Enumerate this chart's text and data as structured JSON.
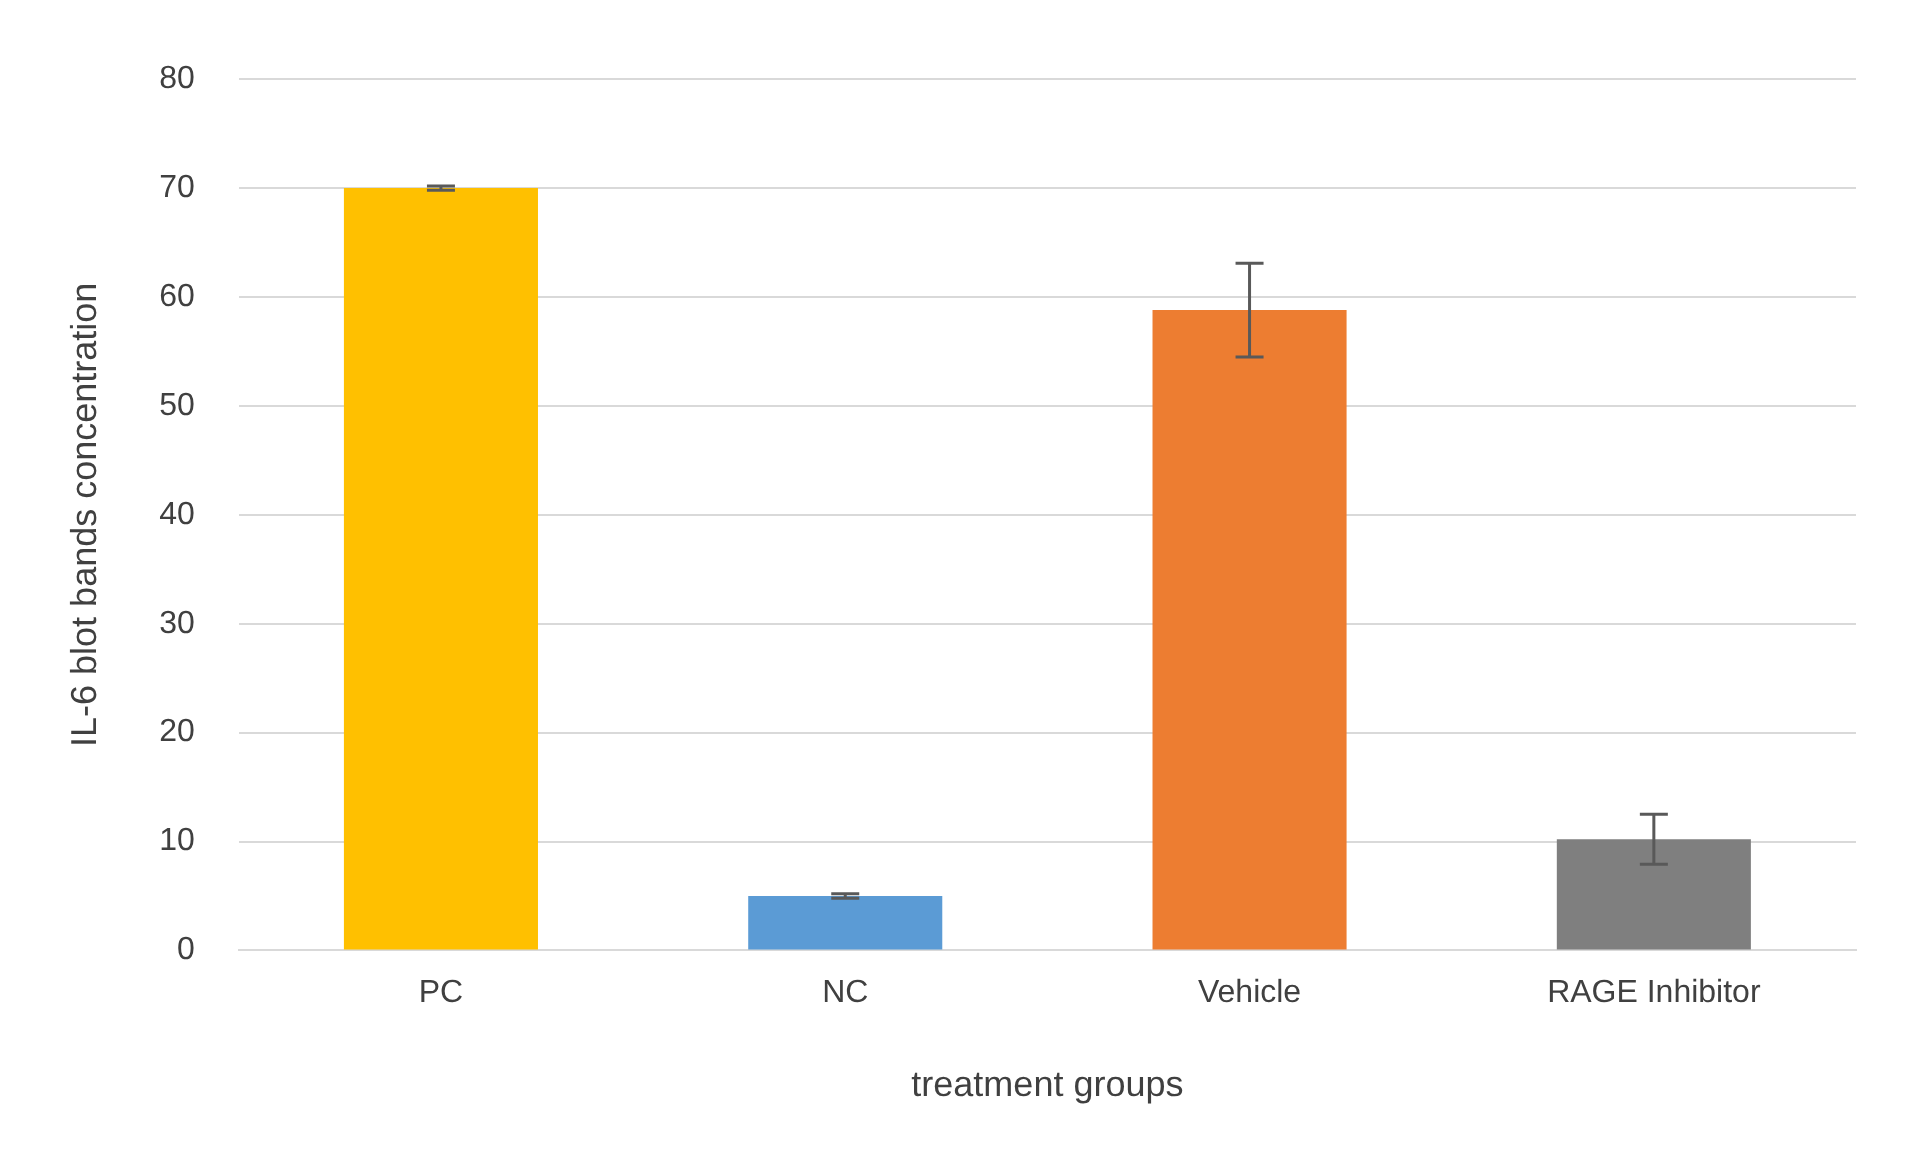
{
  "chart_data": {
    "type": "bar",
    "xlabel": "treatment groups",
    "ylabel": "IL-6 blot bands concentration",
    "categories": [
      "PC",
      "NC",
      "Vehicle",
      "RAGE Inhibitor"
    ],
    "values": [
      70,
      5,
      58.8,
      10.2
    ],
    "colors": [
      "#ffc000",
      "#5b9bd5",
      "#ed7d31",
      "#7f7f7f"
    ],
    "errors": [
      0.2,
      0.2,
      4.3,
      2.3
    ],
    "ylim": [
      0,
      80
    ],
    "yticks": [
      0,
      10,
      20,
      30,
      40,
      50,
      60,
      70,
      80
    ],
    "grid": "y",
    "legend": false
  }
}
